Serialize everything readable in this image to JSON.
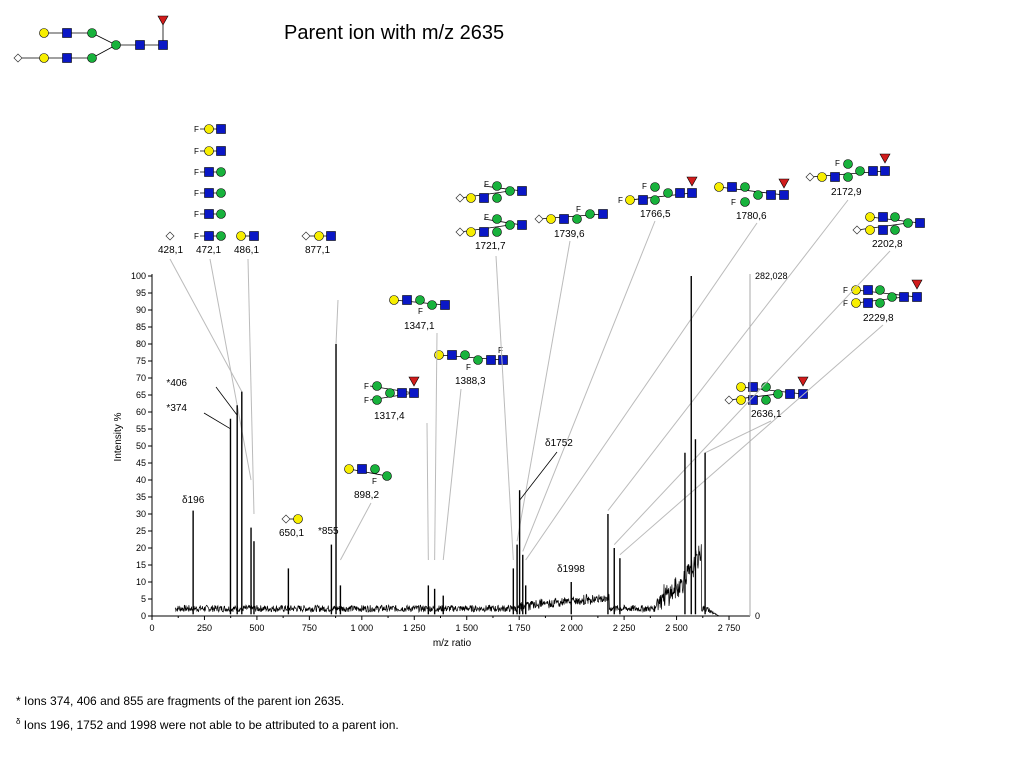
{
  "page": {
    "title": "Parent ion with m/z 2635",
    "footnote_star": "* Ions 374, 406 and 855 are fragments of the parent ion 2635.",
    "footnote_delta_sym": "δ",
    "footnote_delta": " Ions 196, 1752 and 1998 were not able to be attributed to a parent ion."
  },
  "colors": {
    "galactose_yellow": "#f7ee00",
    "glcnac_blue": "#0a17c6",
    "mannose_green": "#18b23c",
    "fucose_red": "#d11c1c",
    "sialic_diamond": "#ffffff",
    "callout_line": "#bbbbbb"
  },
  "chart_data": {
    "type": "line",
    "xlabel": "m/z ratio",
    "ylabel": "Intensity %",
    "xlim": [
      0,
      2850
    ],
    "ylim": [
      0,
      100
    ],
    "x_ticks": [
      0,
      250,
      500,
      750,
      1000,
      1250,
      1500,
      1750,
      2000,
      2250,
      2500,
      2750
    ],
    "x_tick_labels": [
      "0",
      "250",
      "500",
      "750",
      "1 000",
      "1 250",
      "1 500",
      "1 750",
      "2 000",
      "2 250",
      "2 500",
      "2 750"
    ],
    "y_ticks": [
      0,
      5,
      10,
      15,
      20,
      25,
      30,
      35,
      40,
      45,
      50,
      55,
      60,
      65,
      70,
      75,
      80,
      85,
      90,
      95,
      100
    ],
    "right_axis_labels": {
      "top": "282,028",
      "bottom": "0"
    },
    "grid": false,
    "peaks": [
      {
        "x": 196,
        "y": 31
      },
      {
        "x": 374,
        "y": 58
      },
      {
        "x": 406,
        "y": 62
      },
      {
        "x": 428,
        "y": 66
      },
      {
        "x": 472,
        "y": 26
      },
      {
        "x": 486,
        "y": 22
      },
      {
        "x": 650,
        "y": 14
      },
      {
        "x": 855,
        "y": 21
      },
      {
        "x": 877,
        "y": 80
      },
      {
        "x": 898,
        "y": 9
      },
      {
        "x": 1317,
        "y": 9
      },
      {
        "x": 1347,
        "y": 8
      },
      {
        "x": 1388,
        "y": 6
      },
      {
        "x": 1722,
        "y": 14
      },
      {
        "x": 1740,
        "y": 21
      },
      {
        "x": 1752,
        "y": 37
      },
      {
        "x": 1767,
        "y": 18
      },
      {
        "x": 1781,
        "y": 9
      },
      {
        "x": 1998,
        "y": 10
      },
      {
        "x": 2173,
        "y": 30
      },
      {
        "x": 2203,
        "y": 20
      },
      {
        "x": 2230,
        "y": 17
      },
      {
        "x": 2540,
        "y": 48
      },
      {
        "x": 2570,
        "y": 100
      },
      {
        "x": 2590,
        "y": 52
      },
      {
        "x": 2636,
        "y": 48
      }
    ],
    "annotations": [
      {
        "label": "*406",
        "x": 406
      },
      {
        "label": "*374",
        "x": 374
      },
      {
        "label": "δ196",
        "x": 196
      },
      {
        "label": "*855",
        "x": 855
      },
      {
        "label": "δ1752",
        "x": 1752
      },
      {
        "label": "δ1998",
        "x": 1998
      },
      {
        "label": "428,1",
        "x": 428
      },
      {
        "label": "472,1",
        "x": 472
      },
      {
        "label": "486,1",
        "x": 486
      },
      {
        "label": "877,1",
        "x": 877
      },
      {
        "label": "650,1",
        "x": 650
      },
      {
        "label": "898,2",
        "x": 898
      },
      {
        "label": "1317,4",
        "x": 1317
      },
      {
        "label": "1347,1",
        "x": 1347
      },
      {
        "label": "1388,3",
        "x": 1388
      },
      {
        "label": "1721,7",
        "x": 1722
      },
      {
        "label": "1739,6",
        "x": 1740
      },
      {
        "label": "1766,5",
        "x": 1767
      },
      {
        "label": "1780,6",
        "x": 1781
      },
      {
        "label": "2172,9",
        "x": 2173
      },
      {
        "label": "2202,8",
        "x": 2203
      },
      {
        "label": "2229,8",
        "x": 2230
      },
      {
        "label": "2636,1",
        "x": 2636
      }
    ],
    "fragment_letter": "F"
  }
}
